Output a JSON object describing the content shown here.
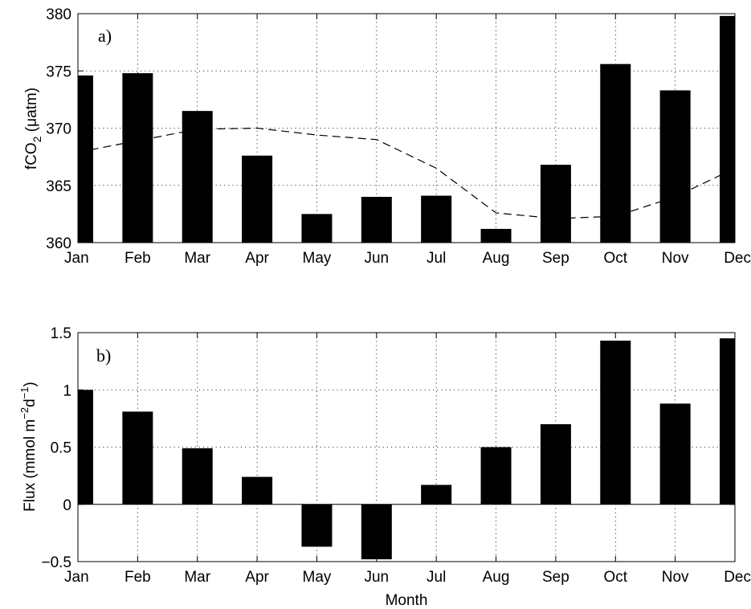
{
  "chart_data": [
    {
      "type": "bar",
      "panel_label": "a)",
      "ylabel_main": "fCO",
      "ylabel_sub": "2",
      "ylabel_tail": " (μatm)",
      "categories": [
        "Jan",
        "Feb",
        "Mar",
        "Apr",
        "May",
        "Jun",
        "Jul",
        "Aug",
        "Sep",
        "Oct",
        "Nov",
        "Dec"
      ],
      "series": [
        {
          "kind": "bar",
          "values": [
            374.6,
            374.8,
            371.5,
            367.6,
            362.5,
            364.0,
            364.1,
            361.2,
            366.8,
            375.6,
            373.3,
            379.8
          ]
        },
        {
          "kind": "dashed-line",
          "values": [
            367.9,
            368.9,
            369.9,
            370.0,
            369.4,
            369.0,
            366.5,
            362.6,
            362.1,
            362.3,
            364.0,
            366.5
          ]
        }
      ],
      "ylim": [
        360,
        380
      ],
      "yticks": [
        360,
        365,
        370,
        375,
        380
      ],
      "grid": true,
      "colors": {
        "bar": "#000000",
        "line": "#000000"
      }
    },
    {
      "type": "bar",
      "panel_label": "b)",
      "ylabel_main": "Flux (mmol m",
      "ylabel_sup1": "−2",
      "ylabel_mid": "d",
      "ylabel_sup2": "−1",
      "ylabel_tail": ")",
      "xlabel": "Month",
      "categories": [
        "Jan",
        "Feb",
        "Mar",
        "Apr",
        "May",
        "Jun",
        "Jul",
        "Aug",
        "Sep",
        "Oct",
        "Nov",
        "Dec"
      ],
      "series": [
        {
          "kind": "bar",
          "values": [
            1.0,
            0.81,
            0.49,
            0.24,
            -0.37,
            -0.48,
            0.17,
            0.5,
            0.7,
            1.43,
            0.88,
            1.45
          ]
        }
      ],
      "ylim": [
        -0.5,
        1.5
      ],
      "yticks": [
        -0.5,
        0,
        0.5,
        1,
        1.5
      ],
      "grid": true,
      "colors": {
        "bar": "#000000"
      }
    }
  ]
}
